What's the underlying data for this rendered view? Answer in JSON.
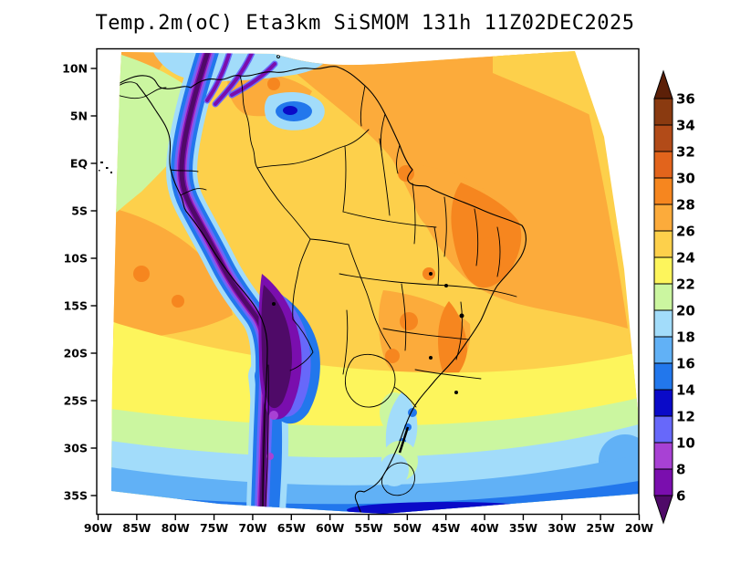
{
  "figure": {
    "title": "Temp.2m(oC) Eta3km SiSMOM 131h 11Z02DEC2025",
    "variable": "Temp.2m(oC)",
    "grid": "Eta3km",
    "system": "SiSMOM",
    "forecast_hour": "131h",
    "valid_time": "11Z02DEC2025"
  },
  "axes": {
    "lat": [
      "10N",
      "5N",
      "EQ",
      "5S",
      "10S",
      "15S",
      "20S",
      "25S",
      "30S",
      "35S"
    ],
    "lon": [
      "90W",
      "85W",
      "80W",
      "75W",
      "70W",
      "65W",
      "60W",
      "55W",
      "50W",
      "45W",
      "40W",
      "35W",
      "30W",
      "25W",
      "20W"
    ]
  },
  "colorbar": {
    "units": "oC",
    "tick_labels": [
      "36",
      "34",
      "32",
      "30",
      "28",
      "26",
      "24",
      "22",
      "20",
      "18",
      "16",
      "14",
      "12",
      "10",
      "8",
      "6"
    ],
    "bands": [
      {
        "range": ">36",
        "shape": "arrow-up",
        "color": "#5c2008"
      },
      {
        "range": "34-36",
        "shape": "box",
        "color": "#8a3a10"
      },
      {
        "range": "32-34",
        "shape": "box",
        "color": "#b24b18"
      },
      {
        "range": "30-32",
        "shape": "box",
        "color": "#e2641c"
      },
      {
        "range": "28-30",
        "shape": "box",
        "color": "#f6861f"
      },
      {
        "range": "26-28",
        "shape": "box",
        "color": "#fcab3b"
      },
      {
        "range": "24-26",
        "shape": "box",
        "color": "#fdd04b"
      },
      {
        "range": "22-24",
        "shape": "box",
        "color": "#fdf55c"
      },
      {
        "range": "20-22",
        "shape": "box",
        "color": "#cbf6a0"
      },
      {
        "range": "18-20",
        "shape": "box",
        "color": "#a2dcfa"
      },
      {
        "range": "16-18",
        "shape": "box",
        "color": "#61b1f6"
      },
      {
        "range": "14-16",
        "shape": "box",
        "color": "#2277ec"
      },
      {
        "range": "12-14",
        "shape": "box",
        "color": "#0a0ac8"
      },
      {
        "range": "10-12",
        "shape": "box",
        "color": "#6768fa"
      },
      {
        "range": "8-10",
        "shape": "box",
        "color": "#a841d4"
      },
      {
        "range": "6-8",
        "shape": "box",
        "color": "#7a0eae"
      },
      {
        "range": "<6",
        "shape": "arrow-down",
        "color": "#4f0a68"
      }
    ]
  },
  "colors": {
    "background": "#ffffff",
    "frame": "#000000",
    "coastline": "#000000"
  },
  "chart_data": {
    "type": "heatmap",
    "title": "Temp.2m(oC) Eta3km SiSMOM 131h 11Z02DEC2025",
    "xlabel": "longitude",
    "ylabel": "latitude",
    "x": [
      "90W",
      "85W",
      "80W",
      "75W",
      "70W",
      "65W",
      "60W",
      "55W",
      "50W",
      "45W",
      "40W",
      "35W",
      "30W",
      "25W",
      "20W"
    ],
    "y": [
      "10N",
      "5N",
      "EQ",
      "5S",
      "10S",
      "15S",
      "20S",
      "25S",
      "30S",
      "35S"
    ],
    "levels": [
      6,
      8,
      10,
      12,
      14,
      16,
      18,
      20,
      22,
      24,
      26,
      28,
      30,
      32,
      34,
      36
    ],
    "palette": [
      "#4f0a68",
      "#7a0eae",
      "#a841d4",
      "#6768fa",
      "#0a0ac8",
      "#2277ec",
      "#61b1f6",
      "#a2dcfa",
      "#cbf6a0",
      "#fdf55c",
      "#fdd04b",
      "#fcab3b",
      "#f6861f",
      "#e2641c",
      "#b24b18",
      "#8a3a10",
      "#5c2008"
    ],
    "legend_position": "right",
    "grid": false,
    "values_est_degC": [
      [
        27,
        27,
        21,
        19,
        19,
        26,
        27,
        27,
        27,
        27,
        27,
        27,
        27,
        27,
        27
      ],
      [
        23,
        21,
        21,
        9,
        25,
        17,
        26,
        27,
        27,
        27,
        27,
        27,
        27,
        27,
        27
      ],
      [
        25,
        23,
        21,
        7,
        25,
        25,
        25,
        25,
        27,
        27,
        27,
        27,
        27,
        27,
        27
      ],
      [
        25,
        25,
        25,
        7,
        23,
        25,
        25,
        25,
        25,
        27,
        27,
        27,
        27,
        27,
        27
      ],
      [
        26,
        26,
        26,
        7,
        9,
        25,
        25,
        25,
        25,
        27,
        29,
        27,
        27,
        27,
        27
      ],
      [
        26,
        26,
        26,
        25,
        5,
        7,
        25,
        25,
        25,
        27,
        27,
        27,
        26,
        26,
        26
      ],
      [
        25,
        25,
        25,
        25,
        5,
        21,
        25,
        25,
        27,
        25,
        29,
        26,
        25,
        25,
        25
      ],
      [
        24,
        24,
        24,
        24,
        5,
        19,
        23,
        23,
        25,
        24,
        24,
        23,
        23,
        23,
        23
      ],
      [
        21,
        21,
        21,
        22,
        5,
        15,
        21,
        20,
        19,
        20,
        21,
        21,
        21,
        21,
        21
      ],
      [
        17,
        17,
        17,
        17,
        5,
        11,
        15,
        16,
        16,
        15,
        14,
        15,
        16,
        17,
        17
      ]
    ],
    "notes": "2-m temperature field over South America; Andes ridge <6-8 oC (purple), Amazon/NE Brazil 24-30 oC, Caribbean coastal waters 18-20 oC, Southern Atlantic/Pacific bands cooling southward 22 to 12 oC"
  }
}
